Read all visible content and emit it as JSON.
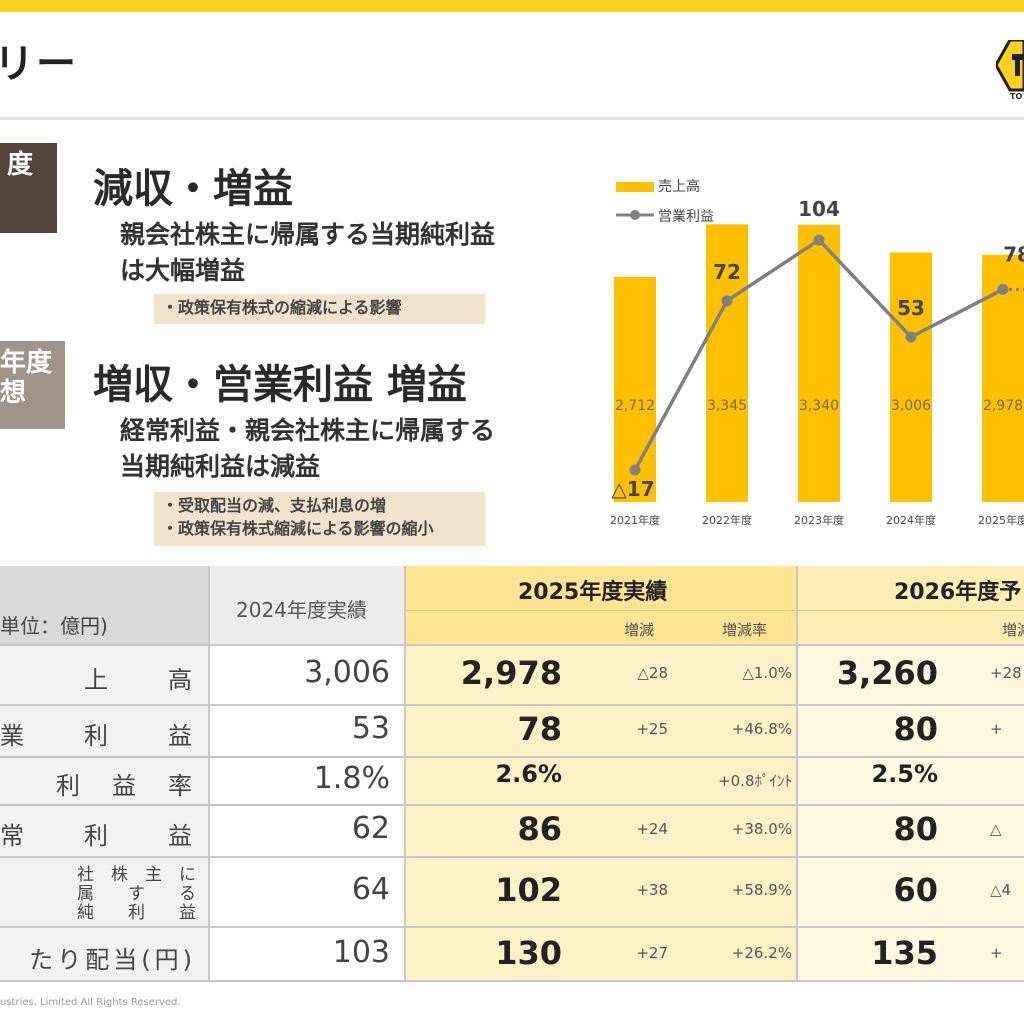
{
  "header": {
    "title": "リー",
    "logo_text": "TO"
  },
  "tags": {
    "tag1": "度",
    "tag2_line1": "年度",
    "tag2_line2": "想"
  },
  "summary": {
    "headline1": "減収・増益",
    "sub1_line1": "親会社株主に帰属する当期純利益",
    "sub1_line2": "は大幅増益",
    "note1": "・政策保有株式の縮減による影響",
    "headline2": "増収・営業利益 増益",
    "sub2_line1": "経常利益・親会社株主に帰属する",
    "sub2_line2": "当期純利益は減益",
    "note2_line1": "・受取配当の減、支払利息の増",
    "note2_line2": "・政策保有株式縮減による影響の縮小"
  },
  "chart_data": {
    "type": "bar",
    "categories": [
      "2021年度",
      "2022年度",
      "2023年度",
      "2024年度",
      "2025年度"
    ],
    "series": [
      {
        "name": "売上高",
        "type": "bar",
        "values": [
          2712,
          3345,
          3340,
          3006,
          2978
        ],
        "labels": [
          "2,712",
          "3,345",
          "3,340",
          "3,006",
          "2,978"
        ],
        "color": "#ffc000"
      },
      {
        "name": "営業利益",
        "type": "line",
        "values": [
          -17,
          72,
          104,
          53,
          78
        ],
        "labels": [
          "△17",
          "72",
          "104",
          "53",
          "78"
        ],
        "color": "#808080"
      }
    ],
    "legend": "top-left"
  },
  "table": {
    "unit_label": "単位：億円)",
    "col_2024": "2024年度実績",
    "col_2025": "2025年度実績",
    "col_2026": "2026年度予",
    "sub_change": "増減",
    "sub_rate": "増減率",
    "sub_2026_change": "増減",
    "rows": [
      {
        "label": "上　　高",
        "v2024": "3,006",
        "v2025": "2,978",
        "d2025": "△28",
        "r2025": "△1.0%",
        "v2026": "3,260",
        "d2026": "+28"
      },
      {
        "label": "業　　利　　益",
        "v2024": "53",
        "v2025": "78",
        "d2025": "+25",
        "r2025": "+46.8%",
        "v2026": "80",
        "d2026": "+"
      },
      {
        "label": "利　益　率",
        "v2024": "1.8%",
        "v2025": "2.6%",
        "d2025": "",
        "r2025": "+0.8ﾎﾟｲﾝﾄ",
        "v2026": "2.5%",
        "d2026": ""
      },
      {
        "label": "常　　利　　益",
        "v2024": "62",
        "v2025": "86",
        "d2025": "+24",
        "r2025": "+38.0%",
        "v2026": "80",
        "d2026": "△"
      },
      {
        "label_l1": "社　株　主　に",
        "label_l2": "属　　す　　る",
        "label_l3": "純　　利　　益",
        "v2024": "64",
        "v2025": "102",
        "d2025": "+38",
        "r2025": "+58.9%",
        "v2026": "60",
        "d2026": "△4"
      },
      {
        "label": "たり配当(円)",
        "v2024": "103",
        "v2025": "130",
        "d2025": "+27",
        "r2025": "+26.2%",
        "v2026": "135",
        "d2026": "+"
      }
    ]
  },
  "footer": "ustries, Limited All Rights Reserved."
}
